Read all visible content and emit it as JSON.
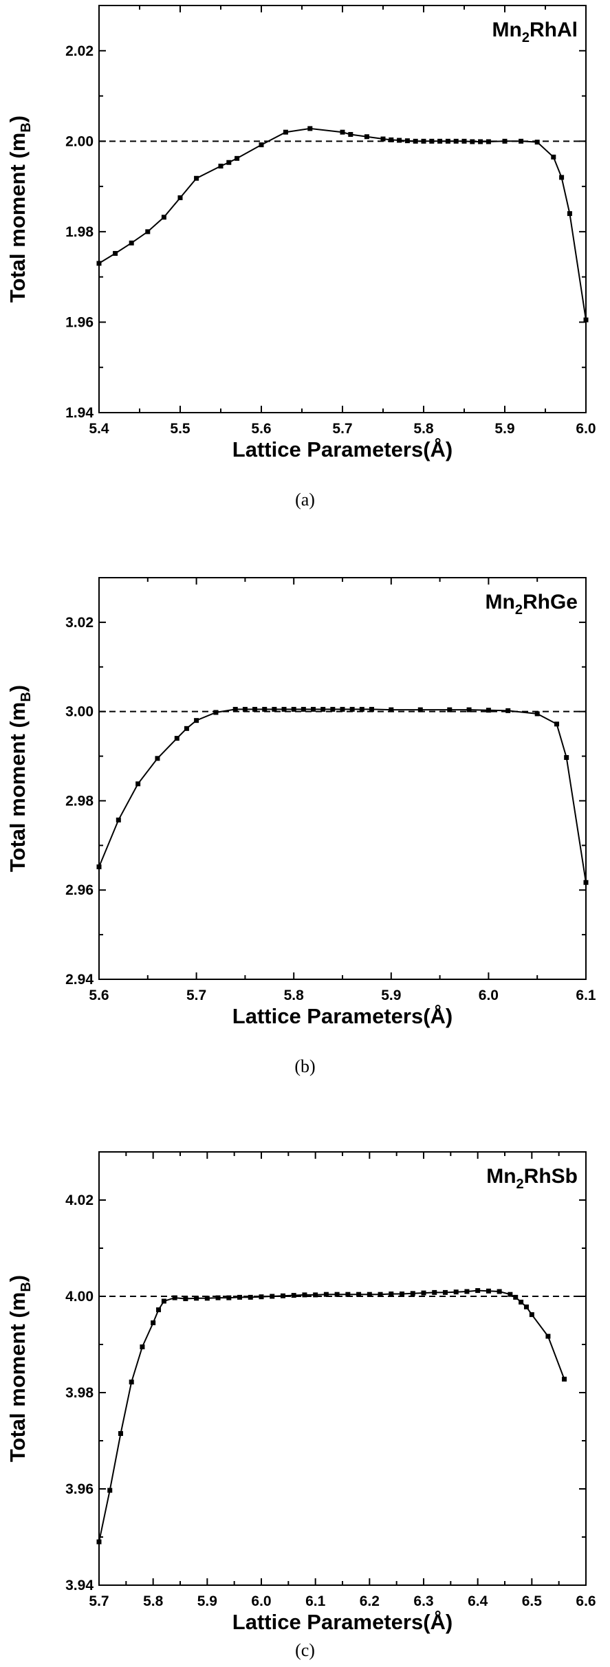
{
  "chart_data": [
    {
      "type": "line",
      "compound": {
        "base": "Mn",
        "sub": "2",
        "rest": "RhAl"
      },
      "caption": "(a)",
      "xlabel": "Lattice Parameters(Å)",
      "ylabel_main": "Total moment (m",
      "ylabel_sub": "B",
      "ylabel_end": ")",
      "xlim": [
        5.4,
        6.0
      ],
      "ylim": [
        1.94,
        2.03
      ],
      "xticks": [
        5.4,
        5.5,
        5.6,
        5.7,
        5.8,
        5.9,
        6.0
      ],
      "yticks": [
        1.94,
        1.96,
        1.98,
        2.0,
        2.02
      ],
      "xtick_labels": [
        "5.4",
        "5.5",
        "5.6",
        "5.7",
        "5.8",
        "5.9",
        "6.0"
      ],
      "ytick_labels": [
        "1.94",
        "1.96",
        "1.98",
        "2.00",
        "2.02"
      ],
      "reference_line": 2.0,
      "series": [
        {
          "x": [
            5.4,
            5.42,
            5.44,
            5.46,
            5.48,
            5.5,
            5.52,
            5.55,
            5.56,
            5.57,
            5.6,
            5.63,
            5.66,
            5.7,
            5.71,
            5.73,
            5.75,
            5.76,
            5.77,
            5.78,
            5.79,
            5.8,
            5.81,
            5.82,
            5.83,
            5.84,
            5.85,
            5.86,
            5.87,
            5.88,
            5.9,
            5.92,
            5.94,
            5.96,
            5.97,
            5.98,
            6.0
          ],
          "y": [
            1.973,
            1.9752,
            1.9775,
            1.98,
            1.9832,
            1.9875,
            1.9918,
            1.9945,
            1.9953,
            1.9962,
            1.9992,
            2.002,
            2.0028,
            2.002,
            2.0015,
            2.001,
            2.0005,
            2.0003,
            2.0002,
            2.0001,
            2.0,
            2.0,
            2.0,
            2.0,
            2.0,
            2.0,
            2.0,
            1.9999,
            1.9999,
            1.9999,
            2.0,
            2.0,
            1.9998,
            1.9965,
            1.992,
            1.984,
            1.9605
          ]
        }
      ]
    },
    {
      "type": "line",
      "compound": {
        "base": "Mn",
        "sub": "2",
        "rest": "RhGe"
      },
      "caption": "(b)",
      "xlabel": "Lattice Parameters(Å)",
      "ylabel_main": "Total moment (m",
      "ylabel_sub": "B",
      "ylabel_end": ")",
      "xlim": [
        5.6,
        6.1
      ],
      "ylim": [
        2.94,
        3.03
      ],
      "xticks": [
        5.6,
        5.7,
        5.8,
        5.9,
        6.0,
        6.1
      ],
      "yticks": [
        2.94,
        2.96,
        2.98,
        3.0,
        3.02
      ],
      "xtick_labels": [
        "5.6",
        "5.7",
        "5.8",
        "5.9",
        "6.0",
        "6.1"
      ],
      "ytick_labels": [
        "2.94",
        "2.96",
        "2.98",
        "3.00",
        "3.02"
      ],
      "reference_line": 3.0,
      "series": [
        {
          "x": [
            5.6,
            5.62,
            5.64,
            5.66,
            5.68,
            5.69,
            5.7,
            5.72,
            5.74,
            5.75,
            5.76,
            5.77,
            5.78,
            5.79,
            5.8,
            5.81,
            5.82,
            5.83,
            5.84,
            5.85,
            5.86,
            5.87,
            5.88,
            5.9,
            5.93,
            5.96,
            5.98,
            6.0,
            6.02,
            6.05,
            6.07,
            6.08,
            6.1
          ],
          "y": [
            2.9652,
            2.9757,
            2.9838,
            2.9895,
            2.994,
            2.9962,
            2.998,
            2.9998,
            3.0005,
            3.0005,
            3.0005,
            3.0005,
            3.0005,
            3.0005,
            3.0005,
            3.0005,
            3.0005,
            3.0005,
            3.0005,
            3.0005,
            3.0005,
            3.0005,
            3.0005,
            3.0004,
            3.0004,
            3.0004,
            3.0004,
            3.0003,
            3.0002,
            2.9995,
            2.9972,
            2.9897,
            2.9617
          ]
        }
      ]
    },
    {
      "type": "line",
      "compound": {
        "base": "Mn",
        "sub": "2",
        "rest": "RhSb"
      },
      "caption": "(c)",
      "xlabel": "Lattice Parameters(Å)",
      "ylabel_main": "Total moment (m",
      "ylabel_sub": "B",
      "ylabel_end": ")",
      "xlim": [
        5.7,
        6.6
      ],
      "ylim": [
        3.94,
        4.03
      ],
      "xticks": [
        5.7,
        5.8,
        5.9,
        6.0,
        6.1,
        6.2,
        6.3,
        6.4,
        6.5,
        6.6
      ],
      "yticks": [
        3.94,
        3.96,
        3.98,
        4.0,
        4.02
      ],
      "xtick_labels": [
        "5.7",
        "5.8",
        "5.9",
        "6.0",
        "6.1",
        "6.2",
        "6.3",
        "6.4",
        "6.5",
        "6.6"
      ],
      "ytick_labels": [
        "3.94",
        "3.96",
        "3.98",
        "4.00",
        "4.02"
      ],
      "reference_line": 4.0,
      "series": [
        {
          "x": [
            5.7,
            5.72,
            5.74,
            5.76,
            5.78,
            5.8,
            5.81,
            5.82,
            5.84,
            5.86,
            5.88,
            5.9,
            5.92,
            5.94,
            5.96,
            5.98,
            6.0,
            6.02,
            6.04,
            6.06,
            6.08,
            6.1,
            6.12,
            6.14,
            6.16,
            6.18,
            6.2,
            6.22,
            6.24,
            6.26,
            6.28,
            6.3,
            6.32,
            6.34,
            6.36,
            6.38,
            6.4,
            6.42,
            6.44,
            6.46,
            6.47,
            6.48,
            6.49,
            6.5,
            6.53,
            6.56
          ],
          "y": [
            3.949,
            3.9597,
            3.9715,
            3.9822,
            3.9895,
            3.9945,
            3.9972,
            3.999,
            3.9997,
            3.9995,
            3.9996,
            3.9996,
            3.9997,
            3.9997,
            3.9998,
            3.9998,
            3.9999,
            4.0,
            4.0001,
            4.0002,
            4.0003,
            4.0003,
            4.0004,
            4.0004,
            4.0004,
            4.0004,
            4.0004,
            4.0004,
            4.0005,
            4.0005,
            4.0006,
            4.0007,
            4.0008,
            4.0008,
            4.0009,
            4.001,
            4.0012,
            4.0011,
            4.001,
            4.0004,
            3.9998,
            3.9988,
            3.9978,
            3.9962,
            3.9917,
            3.9828
          ]
        }
      ]
    }
  ]
}
